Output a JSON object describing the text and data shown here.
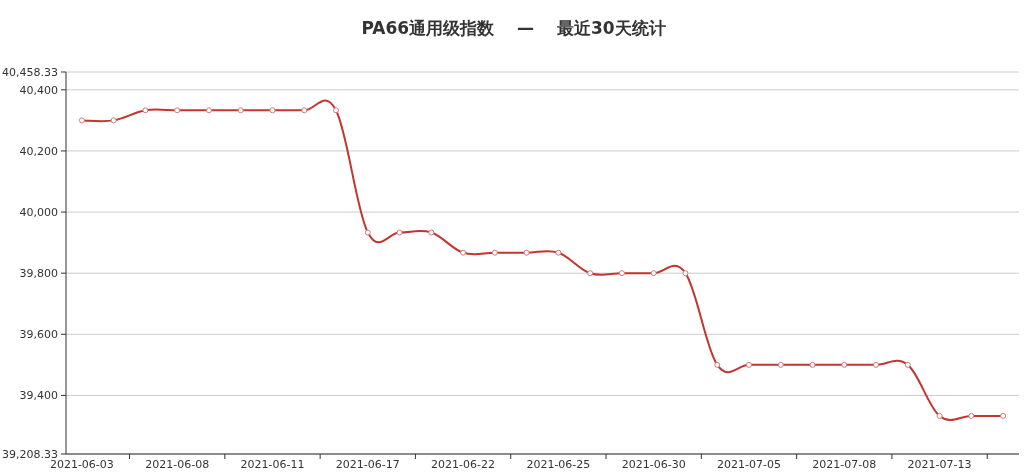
{
  "chart_data": {
    "type": "line",
    "title": "PA66通用级指数 　—　 最近30天统计",
    "categories": [
      "2021-06-03",
      null,
      null,
      "2021-06-08",
      null,
      null,
      "2021-06-11",
      null,
      null,
      "2021-06-17",
      null,
      null,
      "2021-06-22",
      null,
      null,
      "2021-06-25",
      null,
      null,
      "2021-06-30",
      null,
      null,
      "2021-07-05",
      null,
      null,
      "2021-07-08",
      null,
      null,
      "2021-07-13",
      null,
      null
    ],
    "series": [
      {
        "color": "#c23531",
        "values": [
          40300,
          40300,
          40333,
          40333,
          40333,
          40333,
          40333,
          40333,
          40333,
          39933,
          39933,
          39933,
          39867,
          39867,
          39867,
          39867,
          39800,
          39800,
          39800,
          39800,
          39500,
          39500,
          39500,
          39500,
          39500,
          39500,
          39500,
          39333,
          39333,
          39333
        ]
      }
    ],
    "ylim": [
      39208.33,
      40458.33
    ],
    "yticks": [
      {
        "value": 39208.33,
        "label": "39,208.33"
      },
      {
        "value": 39400,
        "label": "39,400"
      },
      {
        "value": 39600,
        "label": "39,600"
      },
      {
        "value": 39800,
        "label": "39,800"
      },
      {
        "value": 40000,
        "label": "40,000"
      },
      {
        "value": 40200,
        "label": "40,200"
      },
      {
        "value": 40400,
        "label": "40,400"
      },
      {
        "value": 40458.33,
        "label": "40,458.33"
      }
    ],
    "grid": "y",
    "marker": "circle",
    "line_style": "solid"
  }
}
